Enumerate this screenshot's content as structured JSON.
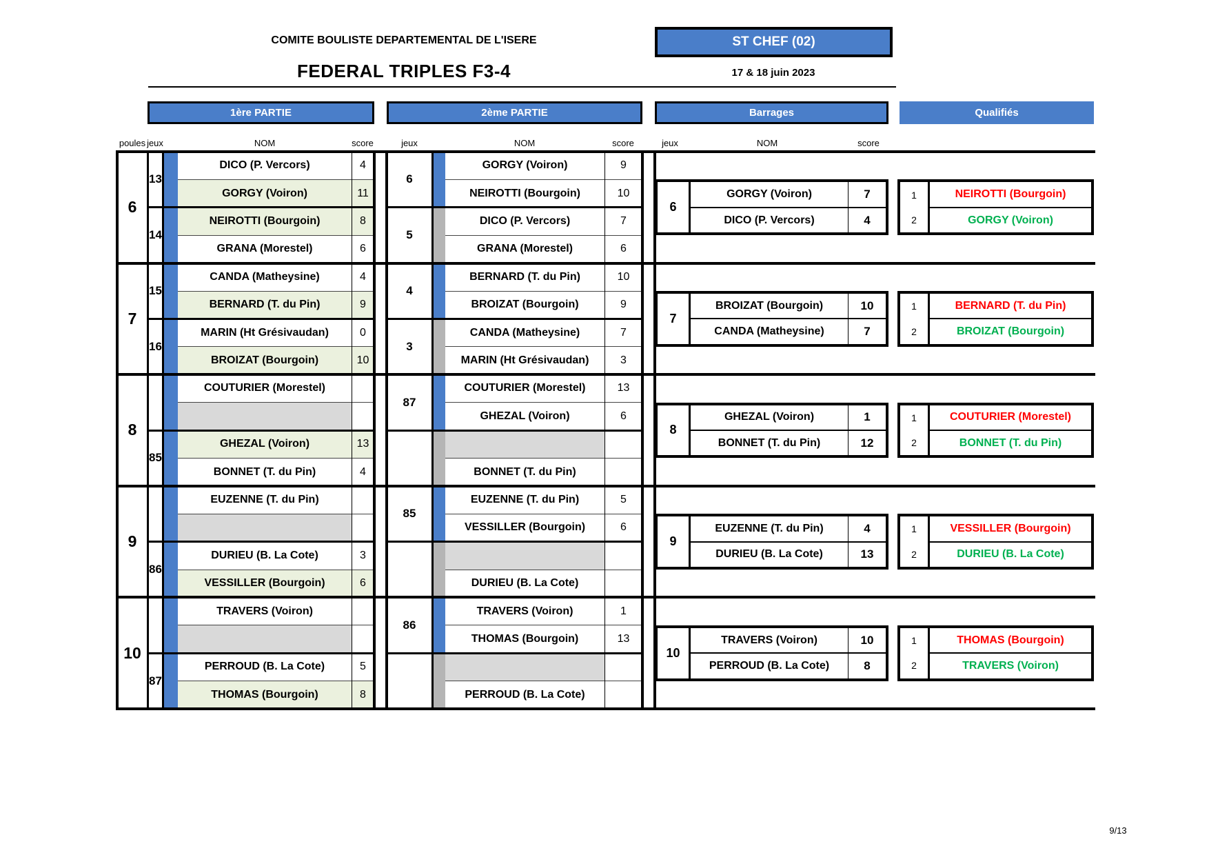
{
  "header": {
    "committee": "COMITE BOULISTE DEPARTEMENTAL DE L'ISERE",
    "event": "FEDERAL TRIPLES  F3-4",
    "venue": "ST CHEF (02)",
    "date": "17 & 18 juin 2023"
  },
  "sections": [
    "1ère PARTIE",
    "2ème PARTIE",
    "Barrages",
    "Qualifiés"
  ],
  "labels": {
    "poules": "poules",
    "jeux": "jeux",
    "nom": "NOM",
    "score": "score"
  },
  "footer": {
    "page": "9/13"
  },
  "colors": {
    "blue": "#4a7ec9",
    "gray_strip": "#b5b5b5",
    "empty_bg": "#d9d9d9",
    "winner_bg": "#ebf1de",
    "red": "#ff0000",
    "green": "#00b050"
  },
  "pools": [
    {
      "number": "6",
      "partie1": [
        {
          "jeu": "13",
          "strip": "blue",
          "rows": [
            {
              "name": "DICO (P. Vercors)",
              "score": "4",
              "bg": "white"
            },
            {
              "name": "GORGY (Voiron)",
              "score": "11",
              "bg": "green"
            }
          ]
        },
        {
          "jeu": "14",
          "strip": "blue",
          "rows": [
            {
              "name": "NEIROTTI (Bourgoin)",
              "score": "8",
              "bg": "green"
            },
            {
              "name": "GRANA (Morestel)",
              "score": "6",
              "bg": "white"
            }
          ]
        }
      ],
      "partie2": [
        {
          "jeu": "6",
          "strip": "blue",
          "rows": [
            {
              "name": "GORGY (Voiron)",
              "score": "9",
              "bg": "white"
            },
            {
              "name": "NEIROTTI (Bourgoin)",
              "score": "10",
              "bg": "white"
            }
          ]
        },
        {
          "jeu": "5",
          "strip": "gray",
          "rows": [
            {
              "name": "DICO (P. Vercors)",
              "score": "7",
              "bg": "white"
            },
            {
              "name": "GRANA (Morestel)",
              "score": "6",
              "bg": "white"
            }
          ]
        }
      ],
      "barrage": {
        "jeu": "6",
        "rows": [
          {
            "name": "GORGY (Voiron)",
            "score": "7"
          },
          {
            "name": "DICO (P. Vercors)",
            "score": "4"
          }
        ]
      },
      "qualifies": [
        {
          "rank": "1",
          "name": "NEIROTTI (Bourgoin)",
          "color": "red"
        },
        {
          "rank": "2",
          "name": "GORGY (Voiron)",
          "color": "green"
        }
      ]
    },
    {
      "number": "7",
      "partie1": [
        {
          "jeu": "15",
          "strip": "blue",
          "rows": [
            {
              "name": "CANDA (Matheysine)",
              "score": "4",
              "bg": "white"
            },
            {
              "name": "BERNARD (T. du Pin)",
              "score": "9",
              "bg": "green"
            }
          ]
        },
        {
          "jeu": "16",
          "strip": "blue",
          "rows": [
            {
              "name": "MARIN (Ht Grésivaudan)",
              "score": "0",
              "bg": "white"
            },
            {
              "name": "BROIZAT (Bourgoin)",
              "score": "10",
              "bg": "green"
            }
          ]
        }
      ],
      "partie2": [
        {
          "jeu": "4",
          "strip": "blue",
          "rows": [
            {
              "name": "BERNARD (T. du Pin)",
              "score": "10",
              "bg": "white"
            },
            {
              "name": "BROIZAT (Bourgoin)",
              "score": "9",
              "bg": "white"
            }
          ]
        },
        {
          "jeu": "3",
          "strip": "gray",
          "rows": [
            {
              "name": "CANDA (Matheysine)",
              "score": "7",
              "bg": "white"
            },
            {
              "name": "MARIN (Ht Grésivaudan)",
              "score": "3",
              "bg": "white"
            }
          ]
        }
      ],
      "barrage": {
        "jeu": "7",
        "rows": [
          {
            "name": "BROIZAT (Bourgoin)",
            "score": "10"
          },
          {
            "name": "CANDA (Matheysine)",
            "score": "7"
          }
        ]
      },
      "qualifies": [
        {
          "rank": "1",
          "name": "BERNARD (T. du Pin)",
          "color": "red"
        },
        {
          "rank": "2",
          "name": "BROIZAT (Bourgoin)",
          "color": "green"
        }
      ]
    },
    {
      "number": "8",
      "partie1": [
        {
          "jeu": "",
          "strip": "blue",
          "rows": [
            {
              "name": "COUTURIER (Morestel)",
              "score": "",
              "bg": "white"
            },
            {
              "name": "",
              "score": "",
              "bg": "gray"
            }
          ]
        },
        {
          "jeu": "85",
          "strip": "blue",
          "rows": [
            {
              "name": "GHEZAL (Voiron)",
              "score": "13",
              "bg": "green"
            },
            {
              "name": "BONNET (T. du Pin)",
              "score": "4",
              "bg": "white"
            }
          ]
        }
      ],
      "partie2": [
        {
          "jeu": "87",
          "strip": "blue",
          "rows": [
            {
              "name": "COUTURIER (Morestel)",
              "score": "13",
              "bg": "white"
            },
            {
              "name": "GHEZAL (Voiron)",
              "score": "6",
              "bg": "white"
            }
          ]
        },
        {
          "jeu": "",
          "strip": "gray",
          "rows": [
            {
              "name": "",
              "score": "",
              "bg": "gray"
            },
            {
              "name": "BONNET (T. du Pin)",
              "score": "",
              "bg": "white"
            }
          ]
        }
      ],
      "barrage": {
        "jeu": "8",
        "rows": [
          {
            "name": "GHEZAL (Voiron)",
            "score": "1"
          },
          {
            "name": "BONNET (T. du Pin)",
            "score": "12"
          }
        ]
      },
      "qualifies": [
        {
          "rank": "1",
          "name": "COUTURIER (Morestel)",
          "color": "red"
        },
        {
          "rank": "2",
          "name": "BONNET (T. du Pin)",
          "color": "green"
        }
      ]
    },
    {
      "number": "9",
      "partie1": [
        {
          "jeu": "",
          "strip": "blue",
          "rows": [
            {
              "name": "EUZENNE (T. du Pin)",
              "score": "",
              "bg": "white"
            },
            {
              "name": "",
              "score": "",
              "bg": "gray"
            }
          ]
        },
        {
          "jeu": "86",
          "strip": "blue",
          "rows": [
            {
              "name": "DURIEU (B. La Cote)",
              "score": "3",
              "bg": "white"
            },
            {
              "name": "VESSILLER (Bourgoin)",
              "score": "6",
              "bg": "green"
            }
          ]
        }
      ],
      "partie2": [
        {
          "jeu": "85",
          "strip": "blue",
          "rows": [
            {
              "name": "EUZENNE (T. du Pin)",
              "score": "5",
              "bg": "white"
            },
            {
              "name": "VESSILLER (Bourgoin)",
              "score": "6",
              "bg": "white"
            }
          ]
        },
        {
          "jeu": "",
          "strip": "gray",
          "rows": [
            {
              "name": "",
              "score": "",
              "bg": "gray"
            },
            {
              "name": "DURIEU (B. La Cote)",
              "score": "",
              "bg": "white"
            }
          ]
        }
      ],
      "barrage": {
        "jeu": "9",
        "rows": [
          {
            "name": "EUZENNE (T. du Pin)",
            "score": "4"
          },
          {
            "name": "DURIEU (B. La Cote)",
            "score": "13"
          }
        ]
      },
      "qualifies": [
        {
          "rank": "1",
          "name": "VESSILLER (Bourgoin)",
          "color": "red"
        },
        {
          "rank": "2",
          "name": "DURIEU (B. La Cote)",
          "color": "green"
        }
      ]
    },
    {
      "number": "10",
      "partie1": [
        {
          "jeu": "",
          "strip": "blue",
          "rows": [
            {
              "name": "TRAVERS (Voiron)",
              "score": "",
              "bg": "white"
            },
            {
              "name": "",
              "score": "",
              "bg": "gray"
            }
          ]
        },
        {
          "jeu": "87",
          "strip": "blue",
          "rows": [
            {
              "name": "PERROUD (B. La Cote)",
              "score": "5",
              "bg": "white"
            },
            {
              "name": "THOMAS (Bourgoin)",
              "score": "8",
              "bg": "green"
            }
          ]
        }
      ],
      "partie2": [
        {
          "jeu": "86",
          "strip": "blue",
          "rows": [
            {
              "name": "TRAVERS (Voiron)",
              "score": "1",
              "bg": "white"
            },
            {
              "name": "THOMAS (Bourgoin)",
              "score": "13",
              "bg": "white"
            }
          ]
        },
        {
          "jeu": "",
          "strip": "gray",
          "rows": [
            {
              "name": "",
              "score": "",
              "bg": "gray"
            },
            {
              "name": "PERROUD (B. La Cote)",
              "score": "",
              "bg": "white"
            }
          ]
        }
      ],
      "barrage": {
        "jeu": "10",
        "rows": [
          {
            "name": "TRAVERS (Voiron)",
            "score": "10"
          },
          {
            "name": "PERROUD (B. La Cote)",
            "score": "8"
          }
        ]
      },
      "qualifies": [
        {
          "rank": "1",
          "name": "THOMAS (Bourgoin)",
          "color": "red"
        },
        {
          "rank": "2",
          "name": "TRAVERS (Voiron)",
          "color": "green"
        }
      ]
    }
  ]
}
